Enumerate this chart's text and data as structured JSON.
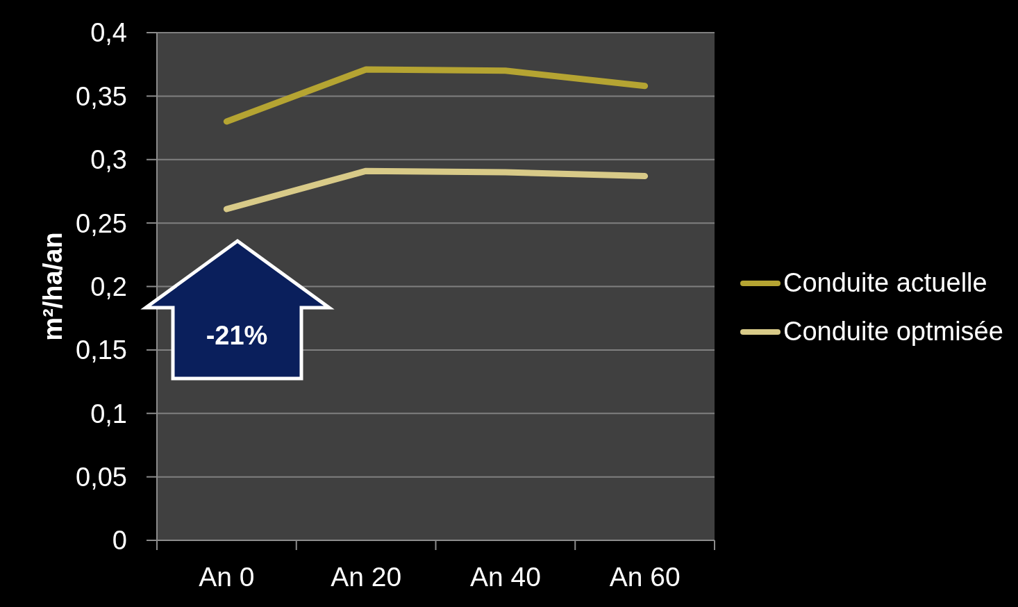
{
  "chart_data": {
    "type": "line",
    "ylabel": "m²/ha/an",
    "categories": [
      "An 0",
      "An 20",
      "An 40",
      "An 60"
    ],
    "series": [
      {
        "name": "Conduite actuelle",
        "color": "#b5a432",
        "values": [
          0.33,
          0.371,
          0.37,
          0.358
        ]
      },
      {
        "name": "Conduite optmisée",
        "color": "#d8ca88",
        "values": [
          0.261,
          0.291,
          0.29,
          0.287
        ]
      }
    ],
    "ylim": [
      0,
      0.4
    ],
    "yticks": [
      0,
      {
        "value": 0.05,
        "label": "0,05"
      },
      {
        "value": 0.1,
        "label": "0,1"
      },
      {
        "value": 0.15,
        "label": "0,15"
      },
      {
        "value": 0.2,
        "label": "0,2"
      },
      {
        "value": 0.25,
        "label": "0,25"
      },
      {
        "value": 0.3,
        "label": "0,3"
      },
      {
        "value": 0.35,
        "label": "0,35"
      },
      {
        "value": 0.4,
        "label": "0,4"
      }
    ],
    "grid": "y",
    "legend": "right",
    "annotations": [
      "-21%"
    ]
  }
}
